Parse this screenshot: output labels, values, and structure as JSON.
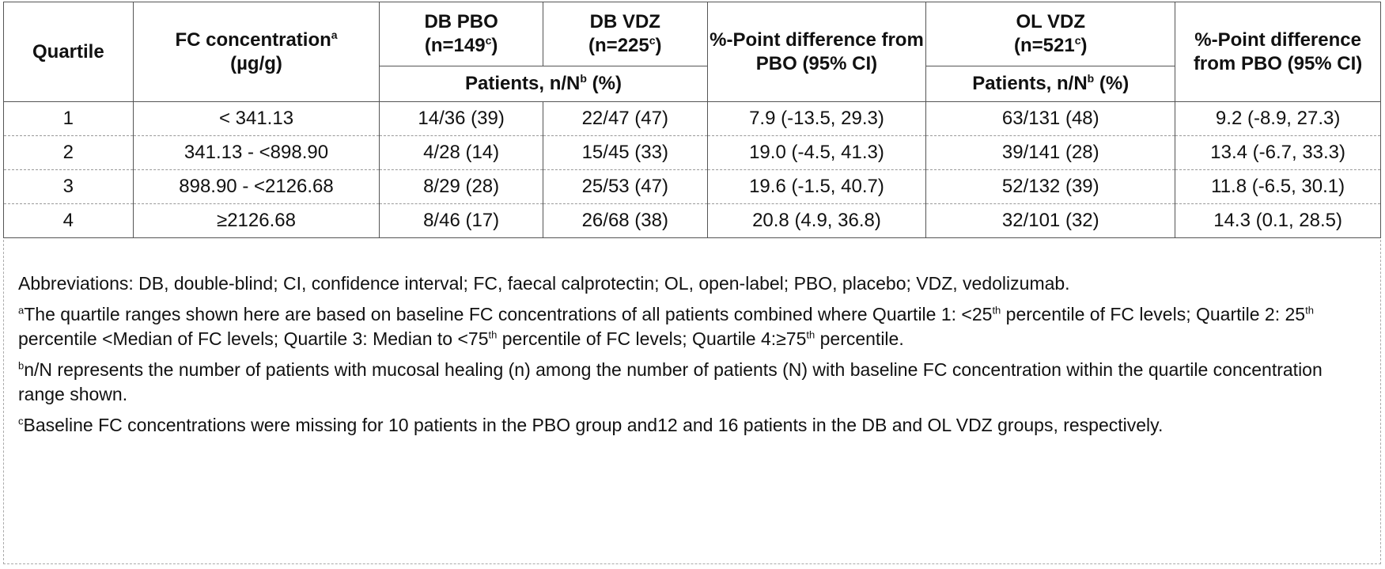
{
  "table": {
    "headers": {
      "quartile": "Quartile",
      "fc": "FC concentration",
      "fc_sup": "a",
      "fc_unit": "(µg/g)",
      "db_pbo": "DB PBO",
      "db_pbo_n": "(n=149",
      "db_vdz": "DB VDZ",
      "db_vdz_n": "(n=225",
      "n_sup": "c",
      "close_paren": ")",
      "diff1": "%-Point difference from PBO (95% CI)",
      "ol_vdz": "OL VDZ",
      "ol_vdz_n": "(n=521",
      "diff2": "%-Point difference from PBO (95% CI)",
      "patients_label": "Patients, n/N",
      "patients_sup": "b",
      "patients_pct": " (%)"
    },
    "rows": [
      {
        "quartile": "1",
        "fc": "< 341.13",
        "db_pbo": "14/36 (39)",
        "db_vdz": "22/47 (47)",
        "diff1": "7.9 (-13.5, 29.3)",
        "ol_vdz": "63/131 (48)",
        "diff2": "9.2 (-8.9, 27.3)"
      },
      {
        "quartile": "2",
        "fc": "341.13 - <898.90",
        "db_pbo": "4/28 (14)",
        "db_vdz": "15/45 (33)",
        "diff1": "19.0 (-4.5, 41.3)",
        "ol_vdz": "39/141 (28)",
        "diff2": "13.4 (-6.7, 33.3)"
      },
      {
        "quartile": "3",
        "fc": "898.90 - <2126.68",
        "db_pbo": "8/29 (28)",
        "db_vdz": "25/53 (47)",
        "diff1": "19.6 (-1.5, 40.7)",
        "ol_vdz": "52/132 (39)",
        "diff2": "11.8 (-6.5, 30.1)"
      },
      {
        "quartile": "4",
        "fc": "≥2126.68",
        "db_pbo": "8/46 (17)",
        "db_vdz": "26/68 (38)",
        "diff1": "20.8 (4.9, 36.8)",
        "ol_vdz": "32/101 (32)",
        "diff2": "14.3 (0.1, 28.5)"
      }
    ]
  },
  "notes": {
    "abbreviations": "Abbreviations: DB, double-blind; CI, confidence interval; FC, faecal calprotectin; OL, open-label; PBO, placebo; VDZ, vedolizumab.",
    "a_sup": "a",
    "a_part1": "The quartile ranges shown here are based on baseline FC concentrations of all patients combined where Quartile 1: <25",
    "th": "th",
    "a_part2": " percentile of FC levels; Quartile 2: 25",
    "a_part3": " percentile <Median of FC levels; Quartile 3: Median to <75",
    "a_part4": " percentile of FC levels; Quartile 4:≥75",
    "a_part5": " percentile.",
    "b_sup": "b",
    "b_text": "n/N represents the number of patients with mucosal healing (n) among the number of patients (N) with baseline FC concentration within the quartile concentration range shown.",
    "c_sup": "c",
    "c_text": "Baseline FC concentrations were missing for 10 patients in the PBO group and12 and 16 patients in the DB and OL VDZ groups, respectively."
  }
}
